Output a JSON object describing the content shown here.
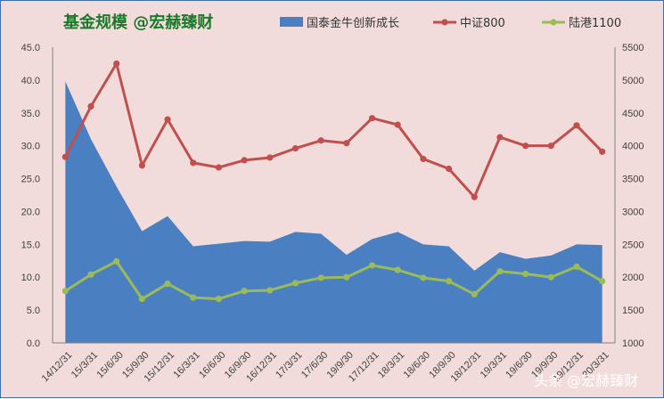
{
  "chart_data": {
    "type": "area+line",
    "title": "基金规模 @宏赫臻财",
    "categories": [
      "14/12/31",
      "15/3/31",
      "15/6/30",
      "15/9/30",
      "15/12/31",
      "16/3/31",
      "16/6/30",
      "16/9/30",
      "16/12/31",
      "17/3/31",
      "17/6/30",
      "19/9/30",
      "17/12/31",
      "18/3/31",
      "18/6/30",
      "18/9/30",
      "18/12/31",
      "19/3/31",
      "19/6/30",
      "19/9/30",
      "19/12/31",
      "20/3/31"
    ],
    "series": [
      {
        "name": "国泰金牛创新成长",
        "kind": "area",
        "axis": "left",
        "color": "#4a7fc1",
        "values": [
          39.8,
          31.0,
          23.8,
          17.0,
          19.3,
          14.7,
          15.1,
          15.5,
          15.4,
          16.9,
          16.6,
          13.4,
          15.8,
          16.9,
          15.0,
          14.7,
          11.0,
          13.8,
          12.8,
          13.3,
          15.0,
          14.9
        ]
      },
      {
        "name": "中证800",
        "kind": "line",
        "axis": "right",
        "color": "#c0504d",
        "values": [
          3830,
          4600,
          5250,
          3700,
          4400,
          3740,
          3670,
          3780,
          3820,
          3960,
          4080,
          4040,
          4420,
          4320,
          3800,
          3650,
          3220,
          4130,
          4000,
          4000,
          4310,
          3910
        ]
      },
      {
        "name": "陆港1100",
        "kind": "line",
        "axis": "right",
        "color": "#9bbb59",
        "values": [
          1790,
          2040,
          2240,
          1670,
          1900,
          1690,
          1670,
          1790,
          1800,
          1910,
          1990,
          2000,
          2180,
          2110,
          1990,
          1940,
          1740,
          2090,
          2050,
          2000,
          2160,
          1940
        ]
      }
    ],
    "y_left": {
      "min": 0,
      "max": 45,
      "step": 5,
      "ticks": [
        "0.0",
        "5.0",
        "10.0",
        "15.0",
        "20.0",
        "25.0",
        "30.0",
        "35.0",
        "40.0",
        "45.0"
      ]
    },
    "y_right": {
      "min": 1000,
      "max": 5500,
      "step": 500,
      "ticks": [
        "1000",
        "1500",
        "2000",
        "2500",
        "3000",
        "3500",
        "4000",
        "4500",
        "5000",
        "5500"
      ]
    },
    "legend": "top",
    "grid": false,
    "watermark": "头条 @宏赫臻财",
    "colors": {
      "background": "#f2dcdb",
      "title": "#1a7a2a",
      "axis": "#7f7f7f"
    }
  }
}
